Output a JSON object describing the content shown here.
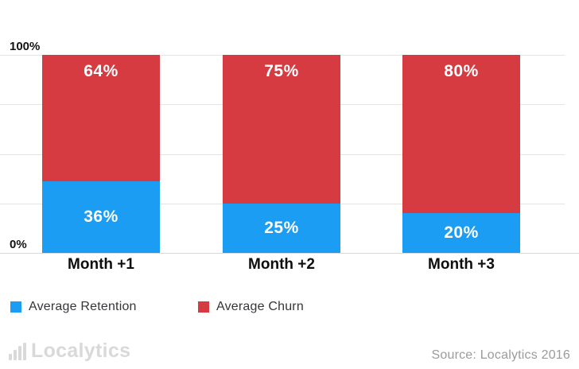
{
  "chart_data": {
    "type": "bar",
    "stacked": true,
    "categories": [
      "Month +1",
      "Month +2",
      "Month +3"
    ],
    "series": [
      {
        "name": "Average Retention",
        "color": "#1B9DF3",
        "values": [
          36,
          25,
          20
        ]
      },
      {
        "name": "Average Churn",
        "color": "#D63B42",
        "values": [
          64,
          75,
          80
        ]
      }
    ],
    "value_label_format": "{v}%",
    "ylim": [
      0,
      100
    ],
    "yticks": [
      {
        "value": 100,
        "label": "100%"
      },
      {
        "value": 0,
        "label": "0%"
      }
    ],
    "gridline_values": [
      0,
      25,
      50,
      75,
      100
    ],
    "grid": true,
    "legend_position": "bottom-left",
    "title": "",
    "xlabel": "",
    "ylabel": ""
  },
  "footer": {
    "logo_text": "Localytics",
    "source_text": "Source: Localytics 2016"
  },
  "icons": {
    "logo_icon": "bar-chart-icon"
  },
  "colors": {
    "retention_blue": "#1B9DF3",
    "churn_red": "#D63B42",
    "gridline": "#E4E4E4",
    "axis_text": "#131313",
    "legend_text": "#33363B",
    "muted_text": "#9B9B9B",
    "logo_gray": "#D9D9D9",
    "background": "#FFFFFF"
  }
}
